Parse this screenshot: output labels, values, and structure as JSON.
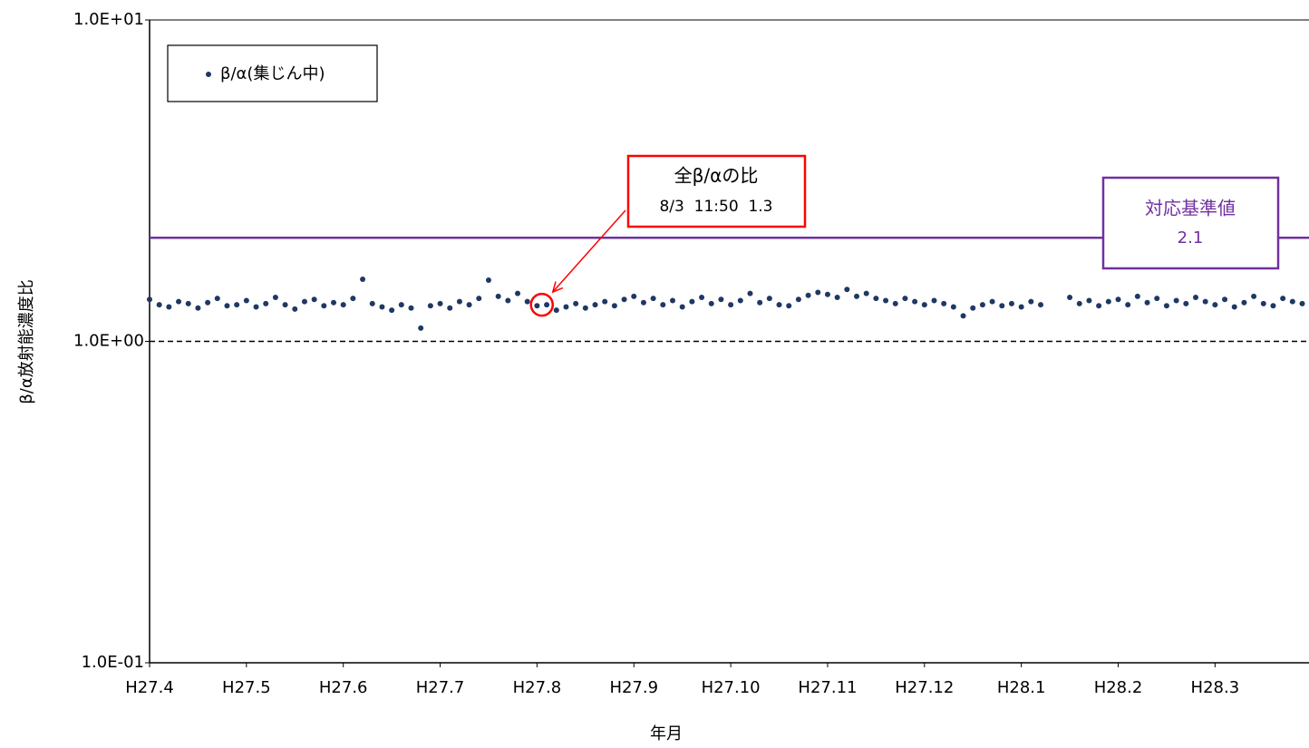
{
  "chart_data": {
    "type": "scatter",
    "y_label": "β/α放射能濃度比",
    "x_label": "年月",
    "log_y": true,
    "grid": true,
    "legend": "upper left",
    "xlim": [
      0,
      11.97
    ],
    "xticks": [
      {
        "value": 0,
        "label": "H27.4"
      },
      {
        "value": 1,
        "label": "H27.5"
      },
      {
        "value": 2,
        "label": "H27.6"
      },
      {
        "value": 3,
        "label": "H27.7"
      },
      {
        "value": 4,
        "label": "H27.8"
      },
      {
        "value": 5,
        "label": "H27.9"
      },
      {
        "value": 6,
        "label": "H27.10"
      },
      {
        "value": 7,
        "label": "H27.11"
      },
      {
        "value": 8,
        "label": "H27.12"
      },
      {
        "value": 9,
        "label": "H28.1"
      },
      {
        "value": 10,
        "label": "H28.2"
      },
      {
        "value": 11,
        "label": "H28.3"
      }
    ],
    "ylim": [
      0.1,
      10
    ],
    "yticks": [
      {
        "value": 0.1,
        "label": "1.0E-01"
      },
      {
        "value": 1,
        "label": "1.0E+00"
      },
      {
        "value": 10,
        "label": "1.0E+01"
      }
    ],
    "series": [
      {
        "name": "β/α(集じん中)",
        "color": "#1f3864",
        "x": [
          0,
          0.1,
          0.2,
          0.3,
          0.4,
          0.5,
          0.6,
          0.7,
          0.8,
          0.9,
          1,
          1.1,
          1.2,
          1.3,
          1.4,
          1.5,
          1.6,
          1.7,
          1.8,
          1.9,
          2,
          2.1,
          2.2,
          2.3,
          2.4,
          2.5,
          2.6,
          2.7,
          2.8,
          2.9,
          3,
          3.1,
          3.2,
          3.3,
          3.4,
          3.5,
          3.6,
          3.7,
          3.8,
          3.9,
          4,
          4.1,
          4.2,
          4.3,
          4.4,
          4.5,
          4.6,
          4.7,
          4.8,
          4.9,
          5,
          5.1,
          5.2,
          5.3,
          5.4,
          5.5,
          5.6,
          5.7,
          5.8,
          5.9,
          6,
          6.1,
          6.2,
          6.3,
          6.4,
          6.5,
          6.6,
          6.7,
          6.8,
          6.9,
          7,
          7.1,
          7.2,
          7.3,
          7.4,
          7.5,
          7.6,
          7.7,
          7.8,
          7.9,
          8,
          8.1,
          8.2,
          8.3,
          8.4,
          8.5,
          8.6,
          8.7,
          8.8,
          8.9,
          9,
          9.1,
          9.2,
          9.5,
          9.6,
          9.7,
          9.8,
          9.9,
          10,
          10.1,
          10.2,
          10.3,
          10.4,
          10.5,
          10.6,
          10.7,
          10.8,
          10.9,
          11,
          11.1,
          11.2,
          11.3,
          11.4,
          11.5,
          11.6,
          11.7,
          11.8,
          11.9
        ],
        "values": [
          1.35,
          1.3,
          1.28,
          1.33,
          1.31,
          1.27,
          1.32,
          1.36,
          1.29,
          1.3,
          1.34,
          1.28,
          1.31,
          1.37,
          1.3,
          1.26,
          1.33,
          1.35,
          1.29,
          1.32,
          1.3,
          1.36,
          1.56,
          1.31,
          1.28,
          1.25,
          1.3,
          1.27,
          1.1,
          1.29,
          1.31,
          1.27,
          1.33,
          1.3,
          1.36,
          1.55,
          1.38,
          1.34,
          1.41,
          1.33,
          1.29,
          1.3,
          1.25,
          1.28,
          1.31,
          1.27,
          1.3,
          1.33,
          1.29,
          1.35,
          1.38,
          1.32,
          1.36,
          1.3,
          1.34,
          1.28,
          1.33,
          1.37,
          1.31,
          1.35,
          1.3,
          1.34,
          1.41,
          1.32,
          1.36,
          1.3,
          1.29,
          1.35,
          1.39,
          1.42,
          1.4,
          1.37,
          1.45,
          1.38,
          1.41,
          1.36,
          1.34,
          1.31,
          1.36,
          1.33,
          1.3,
          1.34,
          1.31,
          1.28,
          1.2,
          1.27,
          1.3,
          1.33,
          1.29,
          1.31,
          1.28,
          1.33,
          1.3,
          1.37,
          1.31,
          1.34,
          1.29,
          1.33,
          1.35,
          1.3,
          1.38,
          1.32,
          1.36,
          1.29,
          1.34,
          1.31,
          1.37,
          1.33,
          1.3,
          1.35,
          1.28,
          1.32,
          1.38,
          1.31,
          1.29,
          1.36,
          1.33,
          1.31
        ]
      }
    ],
    "reference_line": {
      "name": "対応基準値",
      "label": "2.1",
      "value": 2.1,
      "color": "#7030a0"
    },
    "annotation": {
      "text": "全β/αの比",
      "label": "8/3  11:50  1.3",
      "x": 4.05,
      "y": 1.3,
      "color": "#ff0000"
    }
  }
}
